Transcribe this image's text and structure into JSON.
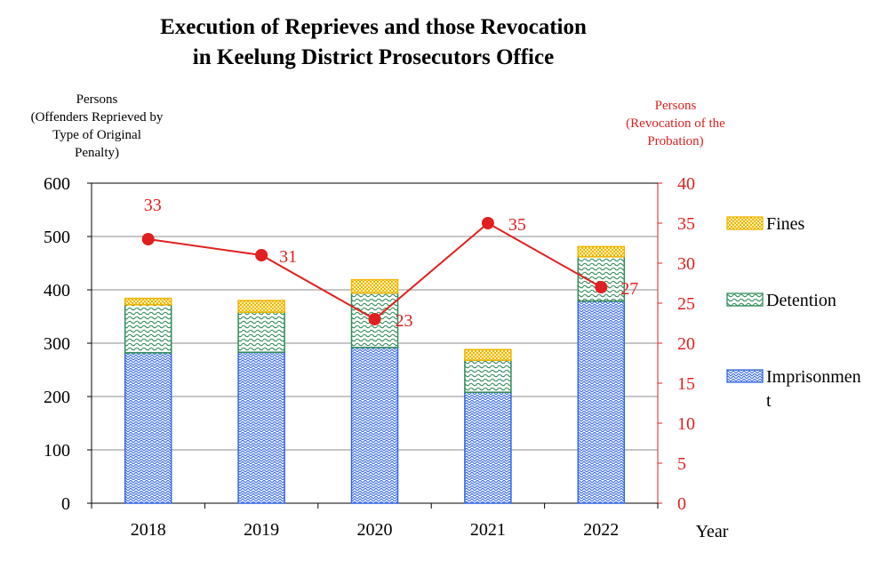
{
  "title_line1": "Execution of Reprieves and those Revocation",
  "title_line2": "in Keelung District Prosecutors Office",
  "left_axis_label": [
    "Persons",
    "(Offenders Reprieved by",
    "Type of Original",
    "Penalty)"
  ],
  "right_axis_label": [
    "Persons",
    "(Revocation of the",
    "Probation)"
  ],
  "x_axis_label": "Year",
  "colors": {
    "imprisonment": "#3366e0",
    "detention": "#2e8b57",
    "fines": "#f0b400",
    "revocation": "#e02020"
  },
  "chart_data": {
    "type": "bar",
    "stacked": true,
    "categories": [
      "2018",
      "2019",
      "2020",
      "2021",
      "2022"
    ],
    "series": [
      {
        "name": "Imprisonment",
        "values": [
          282,
          283,
          292,
          208,
          379
        ]
      },
      {
        "name": "Detention",
        "values": [
          90,
          75,
          102,
          60,
          83
        ]
      },
      {
        "name": "Fines",
        "values": [
          12,
          22,
          25,
          20,
          19
        ]
      }
    ],
    "line_series": {
      "name": "Revocation of the Probation",
      "axis": "right",
      "values": [
        33,
        31,
        23,
        35,
        27
      ]
    },
    "ylim_left": [
      0,
      600
    ],
    "yticks_left": [
      0,
      100,
      200,
      300,
      400,
      500,
      600
    ],
    "ylim_right": [
      0,
      40
    ],
    "yticks_right": [
      0,
      5,
      10,
      15,
      20,
      25,
      30,
      35,
      40
    ],
    "legend": [
      {
        "label": "Fines",
        "series": "fines"
      },
      {
        "label": "Detention",
        "series": "detention"
      },
      {
        "label": "Imprisonmen",
        "label_line2": "t",
        "series": "imprisonment"
      }
    ],
    "grid": true,
    "legend_position": "right"
  }
}
